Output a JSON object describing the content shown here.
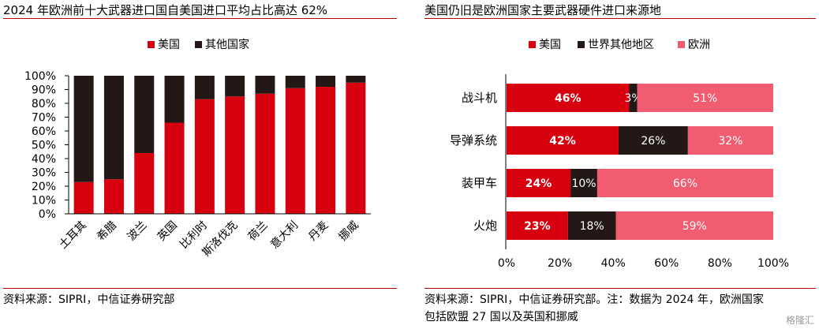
{
  "colors": {
    "us": "#d7000f",
    "dark": "#231816",
    "europe": "#f25c70",
    "rule": "#b40000"
  },
  "left": {
    "title": "2024 年欧洲前十大武器进口国自美国进口平均占比高达 62%",
    "source": "资料来源：SIPRI，中信证券研究部"
  },
  "right": {
    "title": "美国仍旧是欧洲国家主要武器硬件进口来源地",
    "source_line1": "资料来源：SIPRI，中信证券研究部。注：数据为 2024 年，欧洲国家",
    "source_line2": "包括欧盟 27 国以及英国和挪威"
  },
  "watermark": "格隆汇",
  "chart_data": [
    {
      "type": "bar",
      "stacked": true,
      "normalized": true,
      "categories": [
        "土耳其",
        "希腊",
        "波兰",
        "英国",
        "比利时",
        "斯洛伐克",
        "荷兰",
        "意大利",
        "丹麦",
        "挪威"
      ],
      "series": [
        {
          "name": "美国",
          "values": [
            23,
            25,
            44,
            66,
            83,
            85,
            87,
            91,
            92,
            95
          ]
        },
        {
          "name": "其他国家",
          "values": [
            77,
            75,
            56,
            34,
            17,
            15,
            13,
            9,
            8,
            5
          ]
        }
      ],
      "ylim": [
        0,
        100
      ],
      "yticks": [
        "100%",
        "90%",
        "80%",
        "70%",
        "60%",
        "50%",
        "40%",
        "30%",
        "20%",
        "10%",
        "0%"
      ],
      "legend": "top",
      "grid": false
    },
    {
      "type": "bar",
      "orientation": "horizontal",
      "stacked": true,
      "normalized": true,
      "categories": [
        "战斗机",
        "导弹系统",
        "装甲车",
        "火炮"
      ],
      "series": [
        {
          "name": "美国",
          "values": [
            46,
            42,
            24,
            23
          ],
          "labels": [
            "46%",
            "42%",
            "24%",
            "23%"
          ]
        },
        {
          "name": "世界其他地区",
          "values": [
            3,
            26,
            10,
            18
          ],
          "labels": [
            "3%",
            "26%",
            "10%",
            "18%"
          ]
        },
        {
          "name": "欧洲",
          "values": [
            51,
            32,
            66,
            59
          ],
          "labels": [
            "51%",
            "32%",
            "66%",
            "59%"
          ]
        }
      ],
      "xlim": [
        0,
        100
      ],
      "xticks": [
        "0%",
        "20%",
        "40%",
        "60%",
        "80%",
        "100%"
      ],
      "legend": "top",
      "grid": false
    }
  ]
}
